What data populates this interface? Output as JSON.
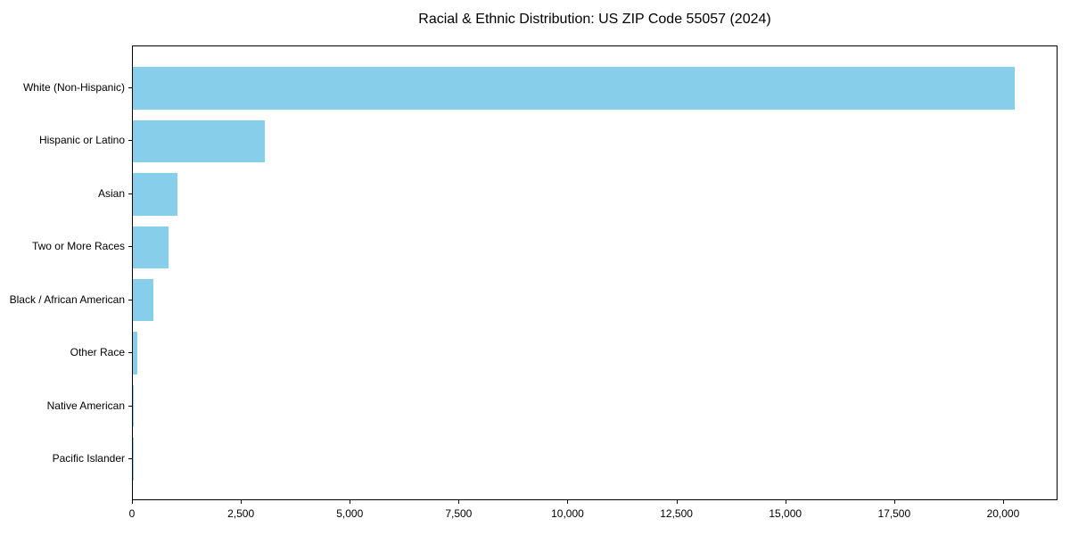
{
  "title": "Racial & Ethnic Distribution: US ZIP Code 55057 (2024)",
  "colors": {
    "bar": "#87CEEB",
    "axis": "#000000",
    "text": "#000000",
    "background": "#FFFFFF"
  },
  "chart_data": {
    "type": "bar",
    "orientation": "horizontal",
    "title": "Racial & Ethnic Distribution: US ZIP Code 55057 (2024)",
    "xlabel": "",
    "ylabel": "",
    "categories": [
      "White (Non-Hispanic)",
      "Hispanic or Latino",
      "Asian",
      "Two or More Races",
      "Black / African American",
      "Other Race",
      "Native American",
      "Pacific Islander"
    ],
    "values": [
      20240,
      3030,
      1020,
      815,
      470,
      110,
      25,
      5
    ],
    "xlim": [
      0,
      21250
    ],
    "x_ticks": [
      0,
      2500,
      5000,
      7500,
      10000,
      12500,
      15000,
      17500,
      20000
    ],
    "x_tick_labels": [
      "0",
      "2,500",
      "5,000",
      "7,500",
      "10,000",
      "12,500",
      "15,000",
      "17,500",
      "20,000"
    ],
    "grid": false,
    "legend": null,
    "bar_color": "#87CEEB"
  }
}
